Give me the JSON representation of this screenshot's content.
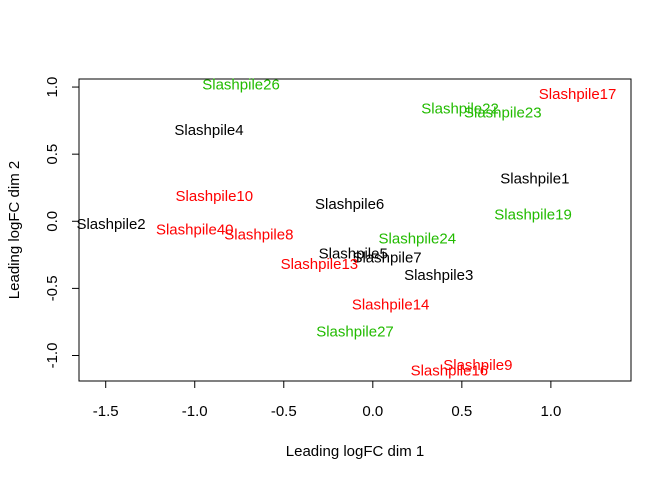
{
  "chart_data": {
    "type": "scatter",
    "title": "",
    "xlabel": "Leading logFC dim 1",
    "ylabel": "Leading logFC dim 2",
    "xlim": [
      -1.65,
      1.45
    ],
    "ylim": [
      -1.19,
      1.06
    ],
    "xticks": [
      {
        "value": -1.5,
        "label": "-1.5"
      },
      {
        "value": -1.0,
        "label": "-1.0"
      },
      {
        "value": -0.5,
        "label": "-0.5"
      },
      {
        "value": 0.0,
        "label": "0.0"
      },
      {
        "value": 0.5,
        "label": "0.5"
      },
      {
        "value": 1.0,
        "label": "1.0"
      }
    ],
    "yticks": [
      {
        "value": -1.0,
        "label": "-1.0"
      },
      {
        "value": -0.5,
        "label": "-0.5"
      },
      {
        "value": 0.0,
        "label": "0.0"
      },
      {
        "value": 0.5,
        "label": "0.5"
      },
      {
        "value": 1.0,
        "label": "1.0"
      }
    ],
    "grid": false,
    "colors": {
      "black": "#000000",
      "red": "#ff0000",
      "green": "#22bb00"
    },
    "points": [
      {
        "label": "Slashpile26",
        "x": -0.74,
        "y": 1.02,
        "color": "green"
      },
      {
        "label": "Slashpile17",
        "x": 1.15,
        "y": 0.95,
        "color": "red"
      },
      {
        "label": "Slashpile22",
        "x": 0.49,
        "y": 0.84,
        "color": "green"
      },
      {
        "label": "Slashpile23",
        "x": 0.73,
        "y": 0.81,
        "color": "green"
      },
      {
        "label": "Slashpile4",
        "x": -0.92,
        "y": 0.68,
        "color": "black"
      },
      {
        "label": "Slashpile1",
        "x": 0.91,
        "y": 0.32,
        "color": "black"
      },
      {
        "label": "Slashpile10",
        "x": -0.89,
        "y": 0.19,
        "color": "red"
      },
      {
        "label": "Slashpile6",
        "x": -0.13,
        "y": 0.13,
        "color": "black"
      },
      {
        "label": "Slashpile19",
        "x": 0.9,
        "y": 0.05,
        "color": "green"
      },
      {
        "label": "Slashpile2",
        "x": -1.47,
        "y": -0.02,
        "color": "black"
      },
      {
        "label": "Slashpile40",
        "x": -1.0,
        "y": -0.06,
        "color": "red"
      },
      {
        "label": "Slashpile8",
        "x": -0.64,
        "y": -0.1,
        "color": "red"
      },
      {
        "label": "Slashpile24",
        "x": 0.25,
        "y": -0.13,
        "color": "green"
      },
      {
        "label": "Slashpile5",
        "x": -0.11,
        "y": -0.24,
        "color": "black"
      },
      {
        "label": "Slashpile7",
        "x": 0.08,
        "y": -0.27,
        "color": "black"
      },
      {
        "label": "Slashpile13",
        "x": -0.3,
        "y": -0.32,
        "color": "red"
      },
      {
        "label": "Slashpile3",
        "x": 0.37,
        "y": -0.4,
        "color": "black"
      },
      {
        "label": "Slashpile14",
        "x": 0.1,
        "y": -0.62,
        "color": "red"
      },
      {
        "label": "Slashpile27",
        "x": -0.1,
        "y": -0.82,
        "color": "green"
      },
      {
        "label": "Slashpile9",
        "x": 0.59,
        "y": -1.07,
        "color": "red"
      },
      {
        "label": "Slashpile16",
        "x": 0.43,
        "y": -1.11,
        "color": "red"
      }
    ]
  }
}
